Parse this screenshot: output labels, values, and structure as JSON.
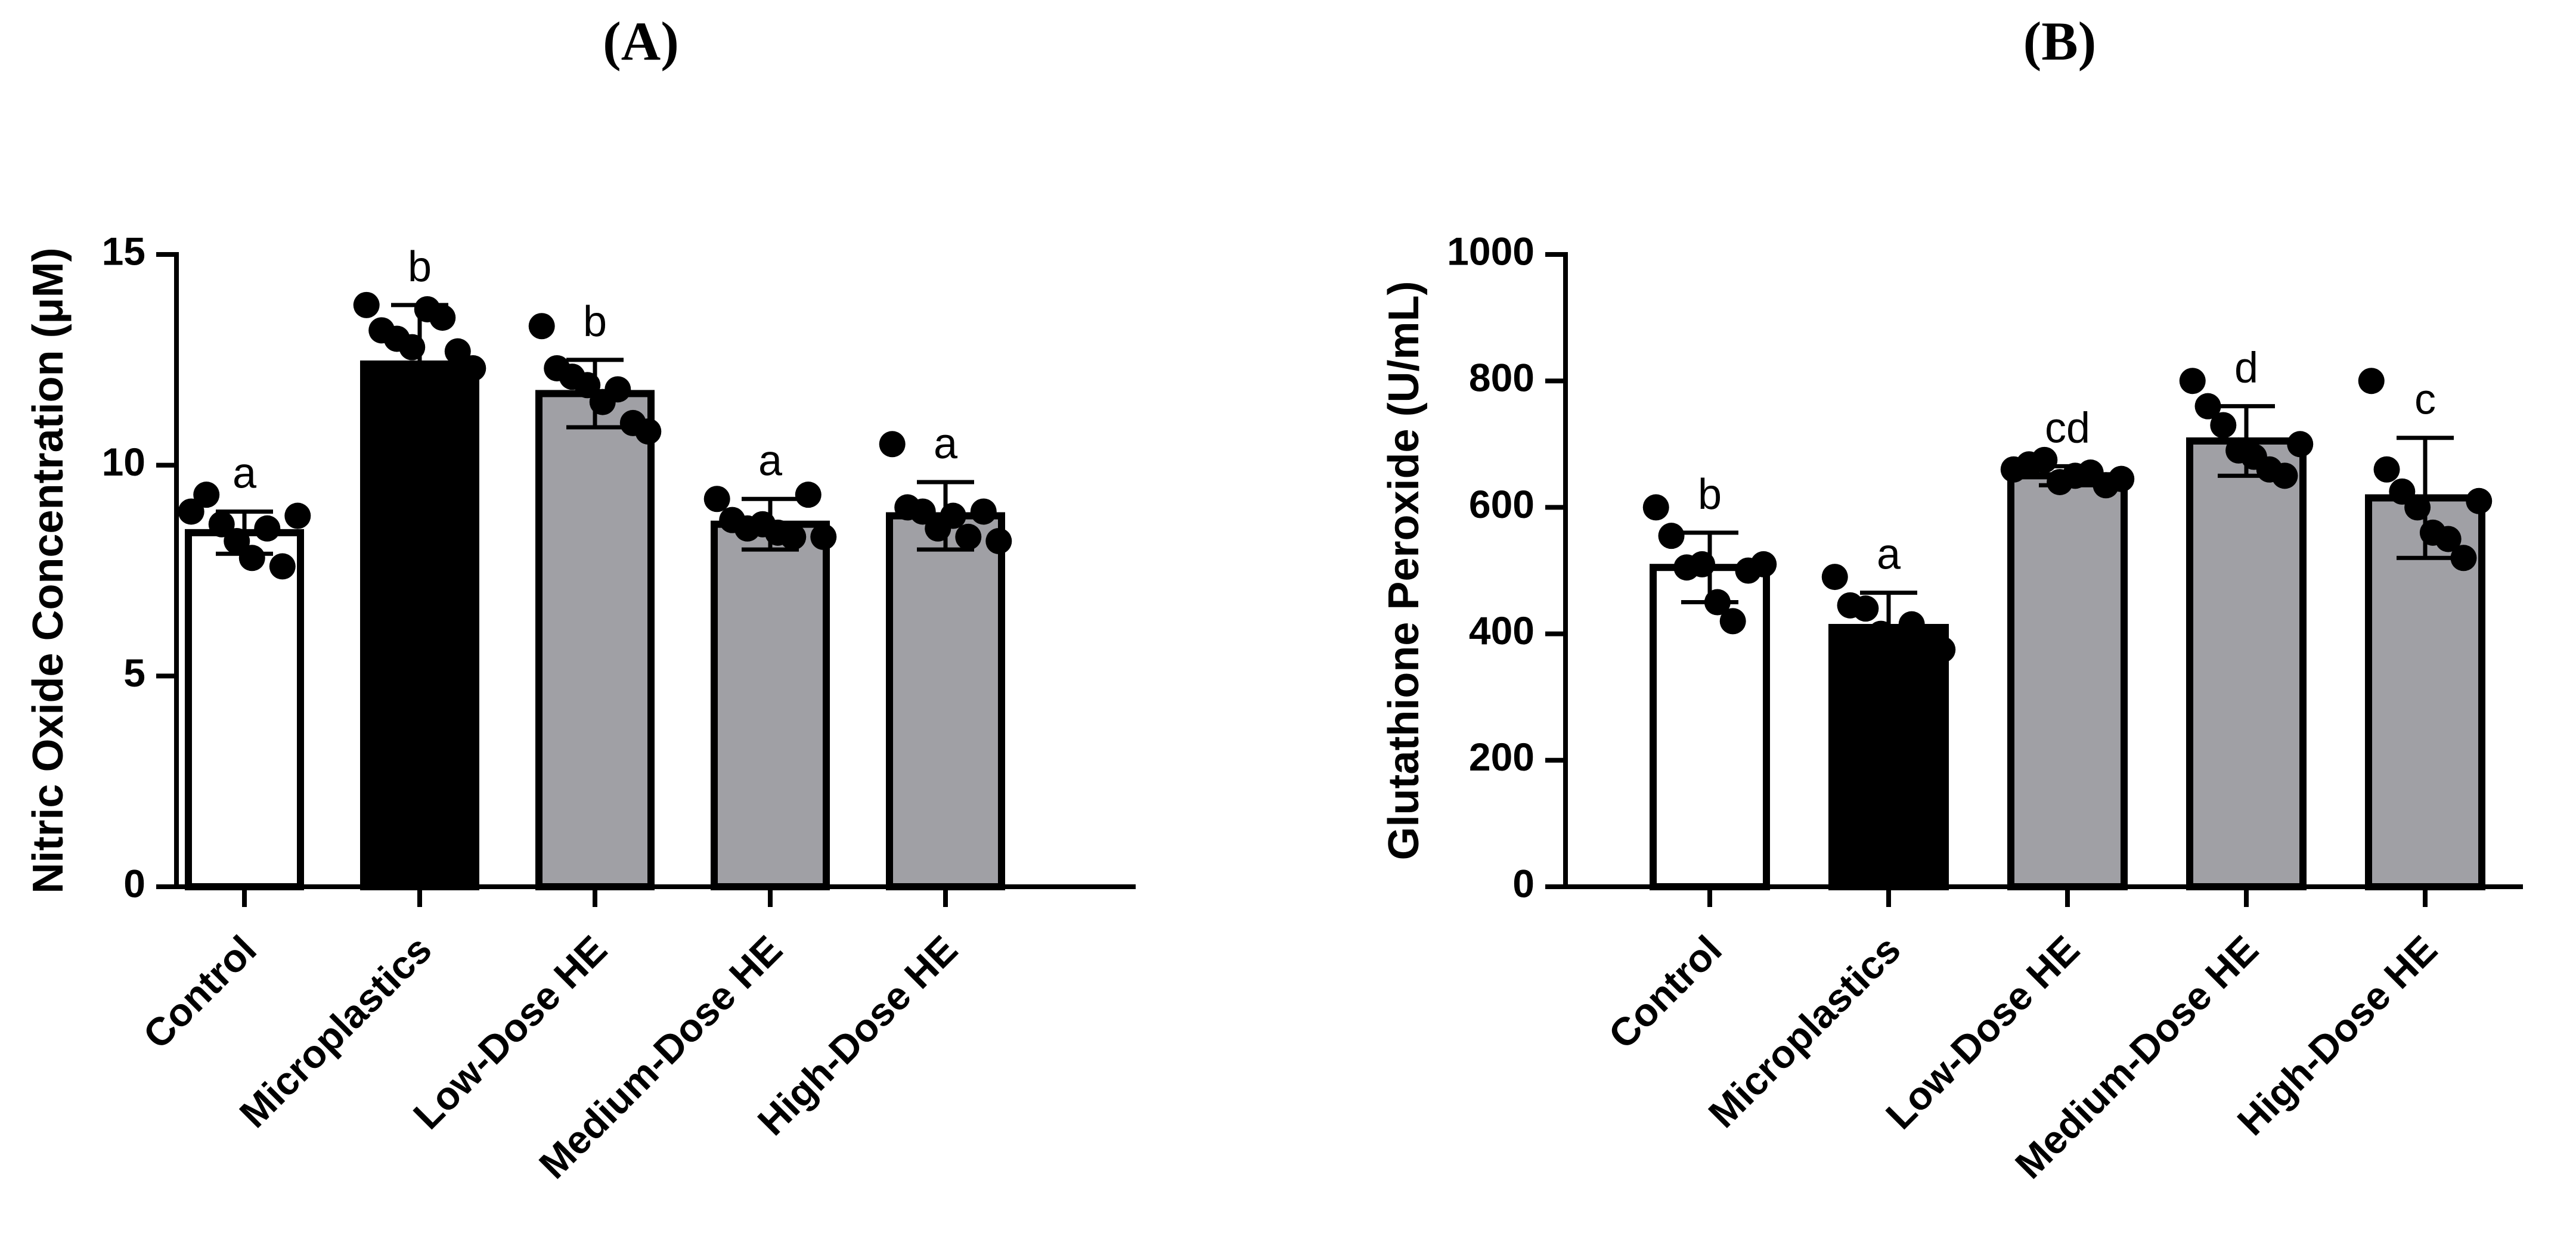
{
  "chart_data": [
    {
      "type": "bar",
      "panel_label": "(A)",
      "ylabel": "Nitric Oxide Concentration (μM)",
      "xlabel": "",
      "ylim": [
        0,
        15
      ],
      "yticks": [
        0,
        5,
        10,
        15
      ],
      "categories": [
        "Control",
        "Microplastics",
        "Low-Dose HE",
        "Medium-Dose HE",
        "High-Dose HE"
      ],
      "values": [
        8.4,
        12.4,
        11.7,
        8.6,
        8.8
      ],
      "errors": [
        0.5,
        1.4,
        0.8,
        0.6,
        0.8
      ],
      "significance": [
        "a",
        "b",
        "b",
        "a",
        "a"
      ],
      "bar_colors": [
        "#ffffff",
        "#000000",
        "#a0a0a5",
        "#a0a0a5",
        "#a0a0a5"
      ],
      "points": [
        [
          8.9,
          9.3,
          8.6,
          8.2,
          7.8,
          8.5,
          7.6,
          8.8
        ],
        [
          13.8,
          13.2,
          13.0,
          12.8,
          13.7,
          13.5,
          12.7,
          12.3
        ],
        [
          13.3,
          12.3,
          12.1,
          11.9,
          11.5,
          11.8,
          11.0,
          10.8
        ],
        [
          9.2,
          8.7,
          8.5,
          8.6,
          8.4,
          8.3,
          9.3,
          8.3
        ],
        [
          10.5,
          9.0,
          8.9,
          8.5,
          8.8,
          8.3,
          8.9,
          8.2
        ]
      ],
      "grid": false
    },
    {
      "type": "bar",
      "panel_label": "(B)",
      "ylabel": "Glutathione Peroxide (U/mL)",
      "xlabel": "",
      "ylim": [
        0,
        1000
      ],
      "yticks": [
        0,
        200,
        400,
        600,
        800,
        1000
      ],
      "categories": [
        "Control",
        "Microplastics",
        "Low-Dose HE",
        "Medium-Dose HE",
        "High-Dose HE"
      ],
      "values": [
        505,
        410,
        650,
        705,
        615
      ],
      "errors": [
        55,
        55,
        15,
        55,
        95
      ],
      "significance": [
        "b",
        "a",
        "cd",
        "d",
        "c"
      ],
      "bar_colors": [
        "#ffffff",
        "#000000",
        "#a0a0a5",
        "#a0a0a5",
        "#a0a0a5"
      ],
      "points": [
        [
          600,
          555,
          505,
          510,
          450,
          420,
          500,
          510
        ],
        [
          490,
          445,
          440,
          400,
          380,
          415,
          385,
          375
        ],
        [
          660,
          668,
          675,
          640,
          650,
          655,
          635,
          645
        ],
        [
          800,
          760,
          730,
          690,
          680,
          660,
          650,
          700
        ],
        [
          800,
          660,
          625,
          600,
          560,
          550,
          520,
          610
        ]
      ],
      "grid": false
    }
  ]
}
